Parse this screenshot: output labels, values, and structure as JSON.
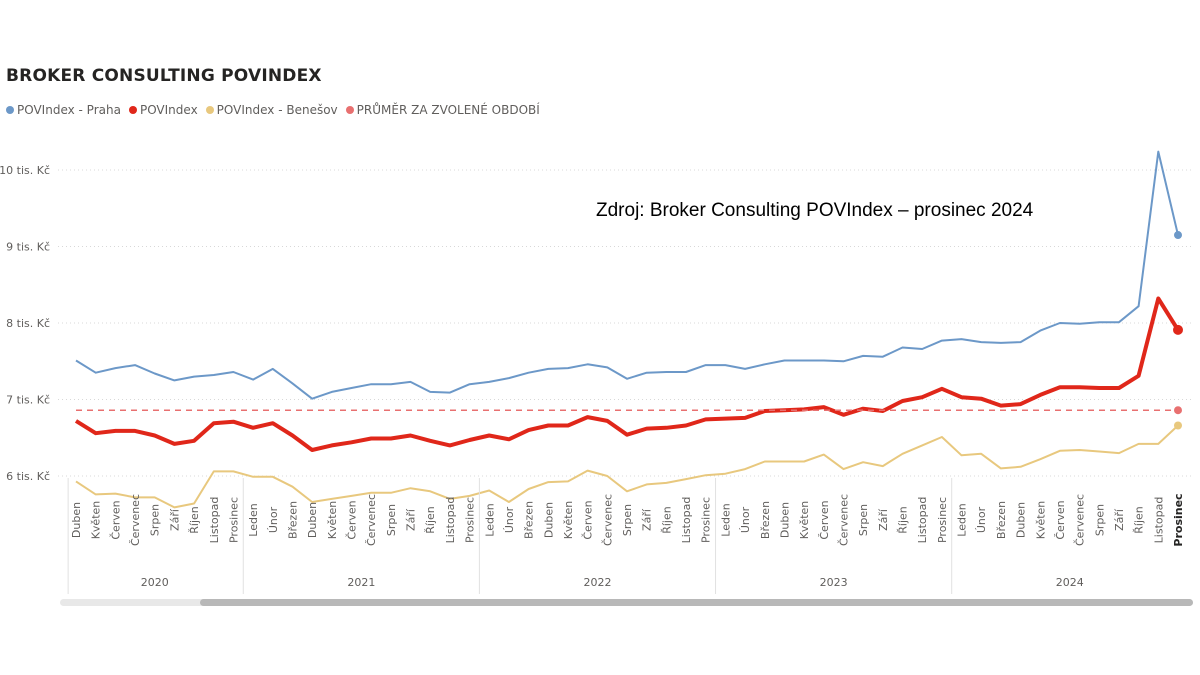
{
  "chart_data": {
    "type": "line",
    "title": "BROKER CONSULTING POVINDEX",
    "annotation": "Zdroj: Broker Consulting POVIndex – prosinec 2024",
    "y_ticks": [
      {
        "value": 6000,
        "label": "6 tis. Kč"
      },
      {
        "value": 7000,
        "label": "7 tis. Kč"
      },
      {
        "value": 8000,
        "label": "8 tis. Kč"
      },
      {
        "value": 9000,
        "label": "9 tis. Kč"
      },
      {
        "value": 10000,
        "label": "10 tis. Kč"
      }
    ],
    "ylim": [
      5400,
      10600
    ],
    "grid": true,
    "legend_position": "top-left",
    "x_months": [
      "Duben",
      "Květen",
      "Červen",
      "Červenec",
      "Srpen",
      "Září",
      "Říjen",
      "Listopad",
      "Prosinec",
      "Leden",
      "Únor",
      "Březen",
      "Duben",
      "Květen",
      "Červen",
      "Červenec",
      "Srpen",
      "Září",
      "Říjen",
      "Listopad",
      "Prosinec",
      "Leden",
      "Únor",
      "Březen",
      "Duben",
      "Květen",
      "Červen",
      "Červenec",
      "Srpen",
      "Září",
      "Říjen",
      "Listopad",
      "Prosinec",
      "Leden",
      "Únor",
      "Březen",
      "Duben",
      "Květen",
      "Červen",
      "Červenec",
      "Srpen",
      "Září",
      "Říjen",
      "Listopad",
      "Prosinec",
      "Leden",
      "Únor",
      "Březen",
      "Duben",
      "Květen",
      "Červen",
      "Červenec",
      "Srpen",
      "Září",
      "Říjen",
      "Listopad",
      "Prosinec"
    ],
    "years": [
      {
        "label": "2020",
        "start": 0,
        "end": 8
      },
      {
        "label": "2021",
        "start": 9,
        "end": 20
      },
      {
        "label": "2022",
        "start": 21,
        "end": 32
      },
      {
        "label": "2023",
        "start": 33,
        "end": 44
      },
      {
        "label": "2024",
        "start": 45,
        "end": 56
      }
    ],
    "highlight_last_label": true,
    "series": [
      {
        "name": "POVIndex - Praha",
        "color": "#6c98c8",
        "width": 2,
        "values": [
          7510,
          7350,
          7410,
          7450,
          7340,
          7250,
          7300,
          7320,
          7360,
          7260,
          7400,
          7210,
          7010,
          7100,
          7150,
          7200,
          7200,
          7230,
          7100,
          7090,
          7200,
          7230,
          7280,
          7350,
          7400,
          7410,
          7460,
          7420,
          7270,
          7350,
          7360,
          7360,
          7450,
          7450,
          7400,
          7460,
          7510,
          7510,
          7510,
          7500,
          7570,
          7560,
          7680,
          7660,
          7770,
          7790,
          7750,
          7740,
          7750,
          7900,
          8000,
          7990,
          8010,
          8010,
          8220,
          10240,
          9150
        ]
      },
      {
        "name": "POVIndex",
        "color": "#e0271a",
        "width": 4,
        "values": [
          6720,
          6560,
          6590,
          6590,
          6530,
          6420,
          6460,
          6690,
          6710,
          6630,
          6690,
          6530,
          6340,
          6400,
          6440,
          6490,
          6490,
          6530,
          6460,
          6400,
          6470,
          6530,
          6480,
          6600,
          6660,
          6660,
          6770,
          6720,
          6540,
          6620,
          6630,
          6660,
          6740,
          6750,
          6760,
          6850,
          6860,
          6870,
          6900,
          6800,
          6880,
          6850,
          6980,
          7030,
          7140,
          7030,
          7010,
          6920,
          6940,
          7060,
          7160,
          7160,
          7150,
          7150,
          7310,
          8320,
          7910
        ]
      },
      {
        "name": "POVIndex - Benešov",
        "color": "#e8c87e",
        "width": 2,
        "values": [
          5930,
          5760,
          5770,
          5720,
          5720,
          5590,
          5640,
          6060,
          6060,
          5990,
          5990,
          5860,
          5660,
          5700,
          5740,
          5780,
          5780,
          5840,
          5800,
          5700,
          5740,
          5810,
          5660,
          5830,
          5920,
          5930,
          6070,
          6000,
          5800,
          5890,
          5910,
          5960,
          6010,
          6030,
          6090,
          6190,
          6190,
          6190,
          6280,
          6090,
          6180,
          6130,
          6290,
          6400,
          6510,
          6270,
          6290,
          6100,
          6120,
          6220,
          6330,
          6340,
          6320,
          6300,
          6420,
          6420,
          6660
        ]
      },
      {
        "name": "PRŮMĚR ZA ZVOLENÉ OBDOBÍ",
        "color": "#e87070",
        "width": 1.5,
        "dashed": true,
        "values_constant": 6860
      }
    ]
  }
}
